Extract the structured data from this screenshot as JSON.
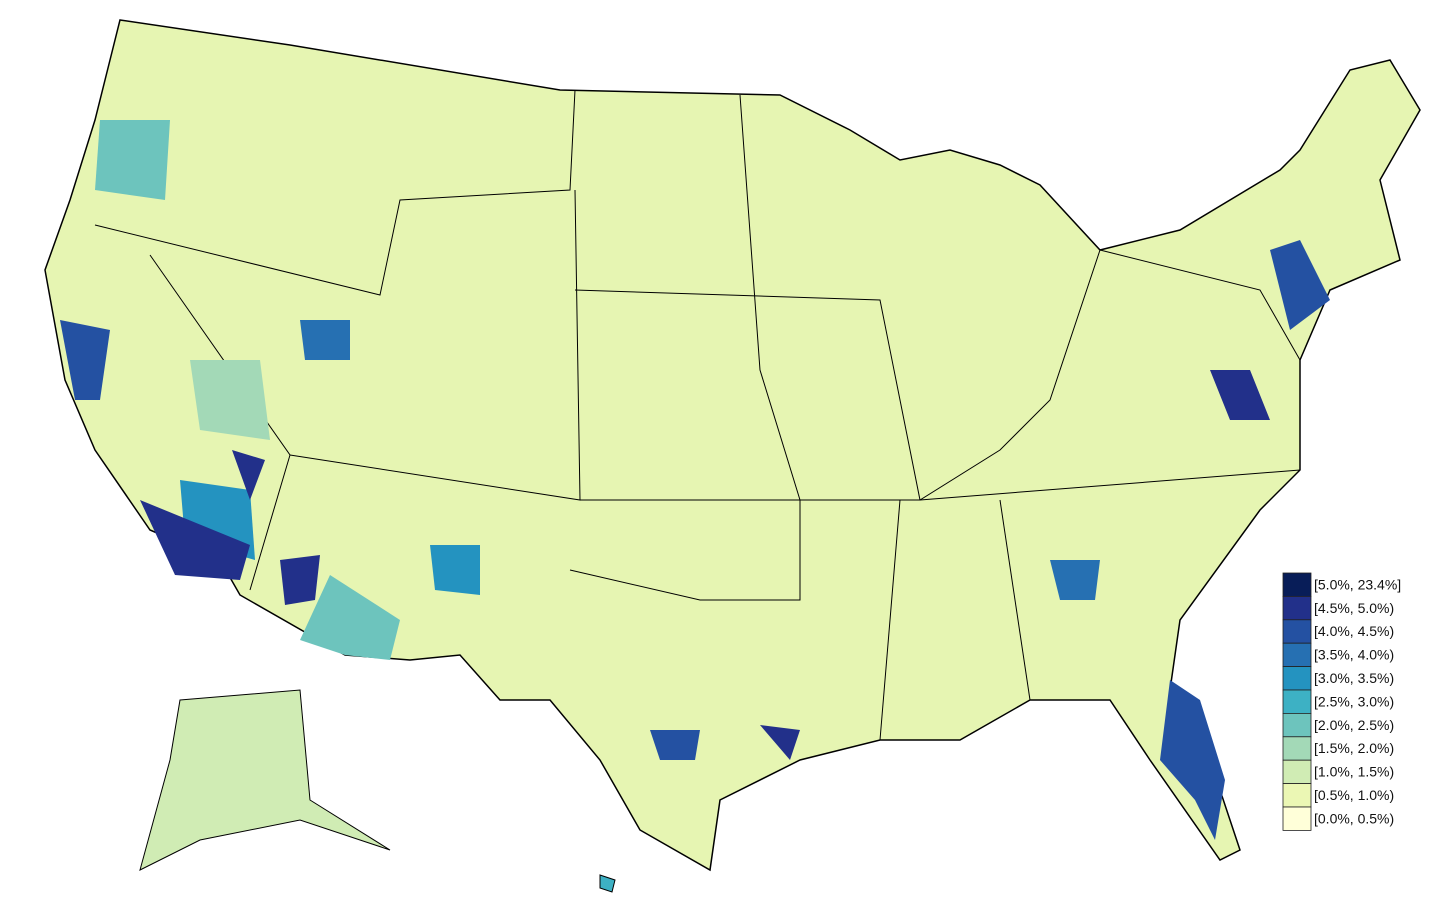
{
  "legend": {
    "items": [
      {
        "label": "[5.0%, 23.4%]",
        "color": "#081d58"
      },
      {
        "label": "[4.5%, 5.0%)",
        "color": "#22308a"
      },
      {
        "label": "[4.0%, 4.5%)",
        "color": "#2451a2"
      },
      {
        "label": "[3.5%, 4.0%)",
        "color": "#2670b2"
      },
      {
        "label": "[3.0%, 3.5%)",
        "color": "#2493c0"
      },
      {
        "label": "[2.5%, 3.0%)",
        "color": "#3db1c4"
      },
      {
        "label": "[2.0%, 2.5%)",
        "color": "#6dc4bd"
      },
      {
        "label": "[1.5%, 2.0%)",
        "color": "#a3d9b7"
      },
      {
        "label": "[1.0%, 1.5%)",
        "color": "#d0ecb4"
      },
      {
        "label": "[0.5%, 1.0%)",
        "color": "#ebf7b4"
      },
      {
        "label": "[0.0%, 0.5%)",
        "color": "#ffffd9"
      }
    ]
  }
}
